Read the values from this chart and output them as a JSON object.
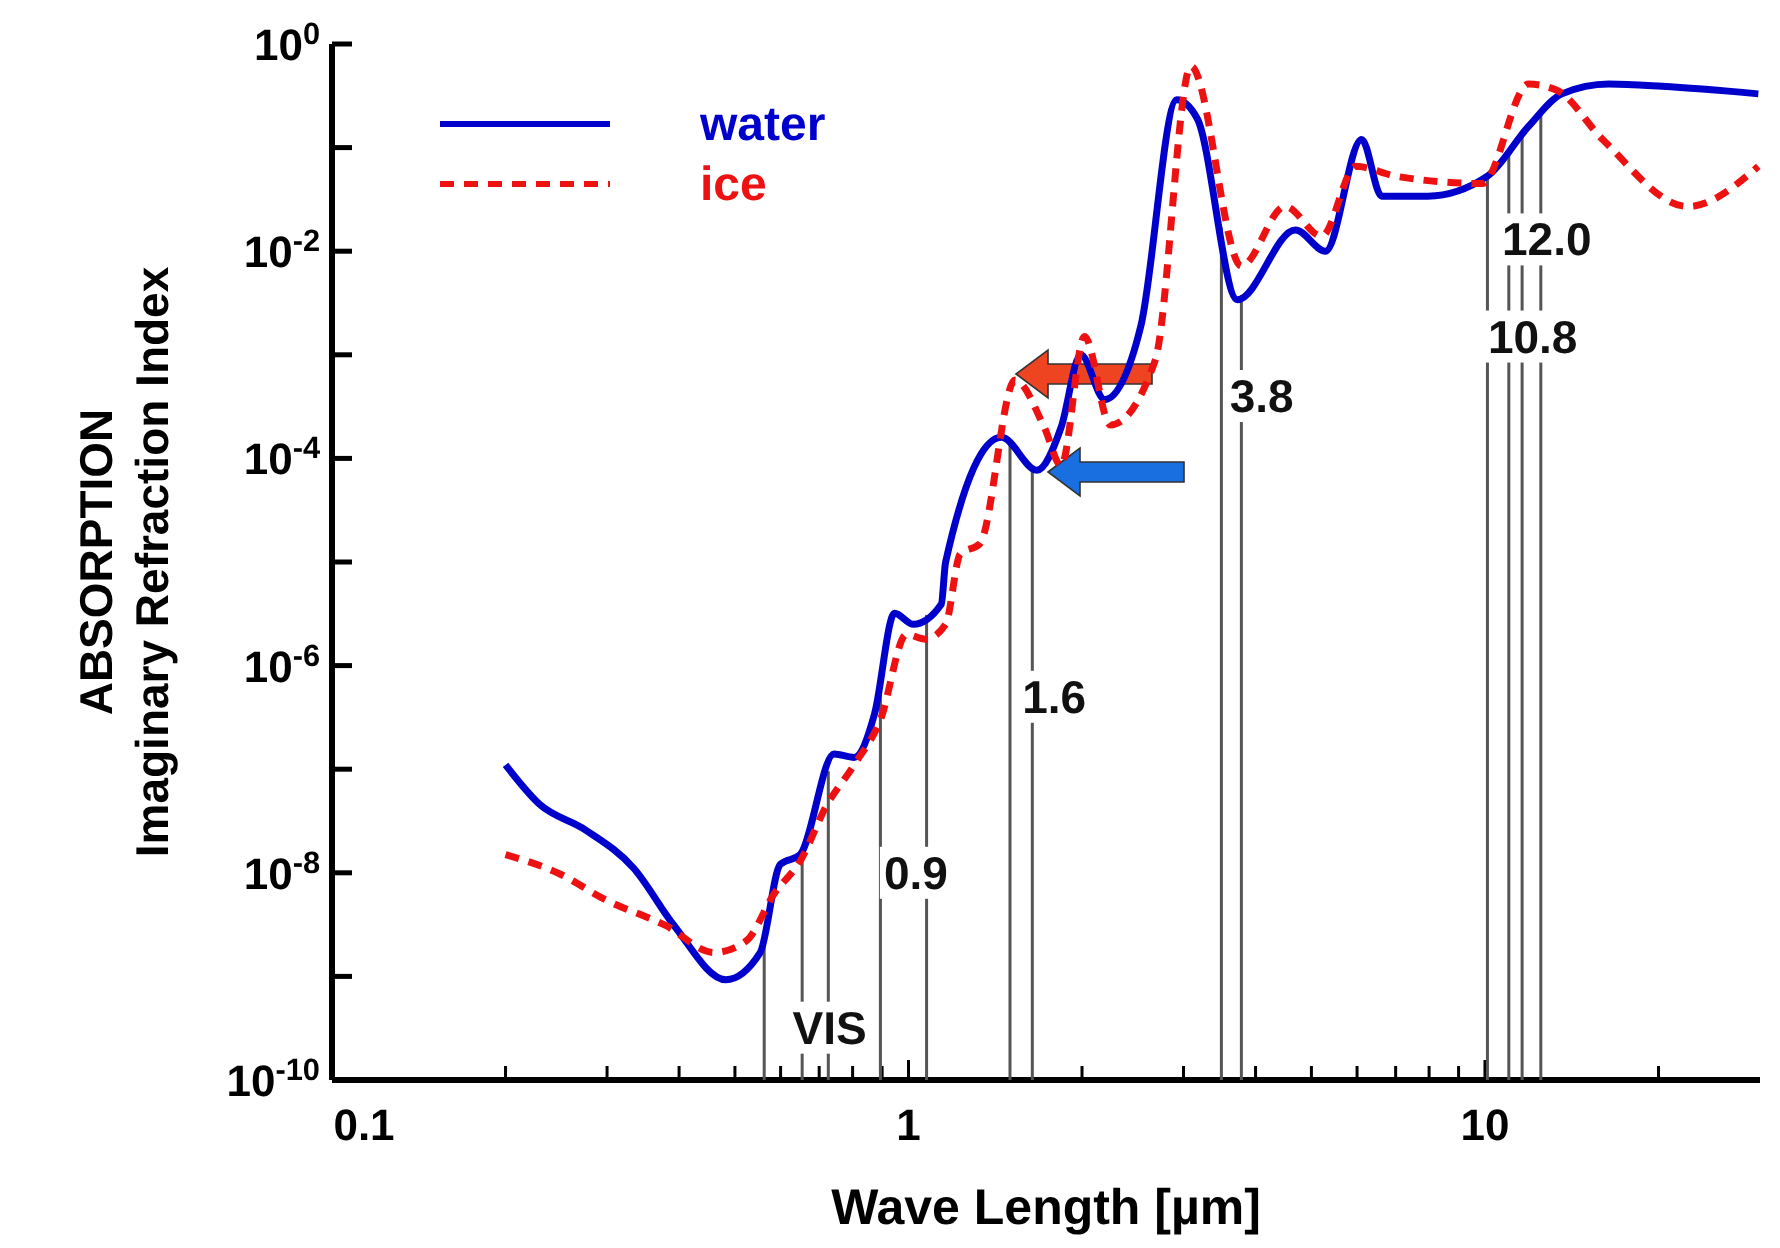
{
  "chart_data": {
    "type": "line",
    "xlabel": "Wave Length [µm]",
    "ylabel": "ABSORPTION\nImaginary Refraction Index",
    "log": "xy",
    "xlim": [
      0.1,
      30
    ],
    "ylim": [
      1e-10,
      1
    ],
    "xticks": [
      {
        "value": 0.1,
        "label": "0.1"
      },
      {
        "value": 0.2,
        "label": null
      },
      {
        "value": 0.3,
        "label": null
      },
      {
        "value": 0.4,
        "label": null
      },
      {
        "value": 0.5,
        "label": null
      },
      {
        "value": 0.6,
        "label": null
      },
      {
        "value": 0.7,
        "label": null
      },
      {
        "value": 0.8,
        "label": null
      },
      {
        "value": 0.9,
        "label": null
      },
      {
        "value": 1,
        "label": "1"
      },
      {
        "value": 2,
        "label": null
      },
      {
        "value": 3,
        "label": null
      },
      {
        "value": 4,
        "label": null
      },
      {
        "value": 5,
        "label": null
      },
      {
        "value": 6,
        "label": null
      },
      {
        "value": 7,
        "label": null
      },
      {
        "value": 8,
        "label": null
      },
      {
        "value": 9,
        "label": null
      },
      {
        "value": 10,
        "label": "10"
      },
      {
        "value": 20,
        "label": null
      }
    ],
    "yticks": [
      {
        "value": 1e-10,
        "label": "10$^{-10}$"
      },
      {
        "value": 1e-09,
        "label": null
      },
      {
        "value": 1e-08,
        "label": "10$^{-8}$"
      },
      {
        "value": 1e-07,
        "label": null
      },
      {
        "value": 1e-06,
        "label": "10$^{-6}$"
      },
      {
        "value": 1e-05,
        "label": null
      },
      {
        "value": 0.0001,
        "label": "10$^{-4}$"
      },
      {
        "value": 0.001,
        "label": null
      },
      {
        "value": 0.01,
        "label": "10$^{-2}$"
      },
      {
        "value": 0.1,
        "label": null
      },
      {
        "value": 1,
        "label": "10$^{0}$"
      }
    ],
    "grid": false,
    "legend": "top left",
    "marker": "none",
    "series": [
      {
        "name": "water",
        "color": "#0000cc",
        "line_style": "solid",
        "x": [
          0.2,
          0.229,
          0.275,
          0.334,
          0.392,
          0.482,
          0.553,
          0.599,
          0.649,
          0.743,
          0.805,
          0.873,
          0.946,
          1.02,
          1.14,
          1.16,
          1.45,
          1.67,
          1.84,
          1.99,
          2.19,
          2.53,
          2.92,
          3.17,
          3.72,
          4.69,
          5.29,
          6.11,
          6.62,
          7.96,
          10.1,
          11.9,
          13.6,
          16.4,
          20.3,
          29.8
        ],
        "values": [
          1.1e-07,
          4.6e-08,
          2.6e-08,
          1.1e-08,
          3.1e-09,
          9.3e-10,
          1.7e-09,
          1.2e-08,
          1.5e-08,
          1.4e-07,
          1.3e-07,
          3.4e-07,
          3.2e-06,
          2.5e-06,
          3.9e-06,
          1e-05,
          0.00016,
          7.7e-05,
          0.0002,
          0.001,
          0.00037,
          0.0019,
          0.29,
          0.19,
          0.0034,
          0.016,
          0.01,
          0.12,
          0.034,
          0.034,
          0.053,
          0.16,
          0.33,
          0.41,
          0.39,
          0.33
        ]
      },
      {
        "name": "ice",
        "color": "#ee1111",
        "line_style": "dashed",
        "x": [
          0.2,
          0.248,
          0.298,
          0.379,
          0.46,
          0.523,
          0.585,
          0.649,
          0.72,
          0.805,
          0.894,
          0.992,
          1.07,
          1.16,
          1.23,
          1.33,
          1.53,
          1.72,
          1.84,
          2.02,
          2.24,
          2.68,
          3.09,
          3.78,
          4.5,
          5.21,
          5.97,
          7.0,
          9.89,
          11.9,
          13.3,
          16.0,
          22.5,
          29.8
        ],
        "values": [
          1.5e-08,
          9.8e-09,
          5.5e-09,
          3.1e-09,
          1.7e-09,
          2.2e-09,
          6.3e-09,
          1.3e-08,
          4.4e-08,
          1.1e-07,
          3e-07,
          2e-06,
          1.8e-06,
          2.5e-06,
          1.2e-05,
          1.5e-05,
          0.00057,
          0.0002,
          8.5e-05,
          0.0015,
          0.00021,
          0.00089,
          0.61,
          0.0072,
          0.027,
          0.014,
          0.066,
          0.053,
          0.045,
          0.41,
          0.36,
          0.12,
          0.027,
          0.066
        ]
      }
    ],
    "ref_lines": [
      {
        "axis": "x",
        "value": 0.562,
        "color": "#555555"
      },
      {
        "axis": "x",
        "value": 0.654,
        "color": "#555555"
      },
      {
        "axis": "x",
        "value": 0.726,
        "color": "#555555"
      },
      {
        "axis": "x",
        "value": 0.894,
        "color": "#555555"
      },
      {
        "axis": "x",
        "value": 1.075,
        "color": "#555555"
      },
      {
        "axis": "x",
        "value": 1.5,
        "color": "#555555"
      },
      {
        "axis": "x",
        "value": 1.64,
        "color": "#555555"
      },
      {
        "axis": "x",
        "value": 3.49,
        "color": "#555555"
      },
      {
        "axis": "x",
        "value": 3.78,
        "color": "#555555"
      },
      {
        "axis": "x",
        "value": 10.1,
        "color": "#555555"
      },
      {
        "axis": "x",
        "value": 11.0,
        "color": "#555555"
      },
      {
        "axis": "x",
        "value": 11.6,
        "color": "#555555"
      },
      {
        "axis": "x",
        "value": 12.5,
        "color": "#555555"
      }
    ],
    "annotations": [
      {
        "text": "VIS",
        "x": 0.73,
        "y": 3.2e-10
      },
      {
        "text": "0.9",
        "x": 1.03,
        "y": 1e-08
      },
      {
        "text": "1.6",
        "x": 1.79,
        "y": 5e-07
      },
      {
        "text": "3.8",
        "x": 4.1,
        "y": 0.0004
      },
      {
        "text": "10.8",
        "x": 12.1,
        "y": 0.0015
      },
      {
        "text": "12.0",
        "x": 12.8,
        "y": 0.013
      }
    ]
  }
}
